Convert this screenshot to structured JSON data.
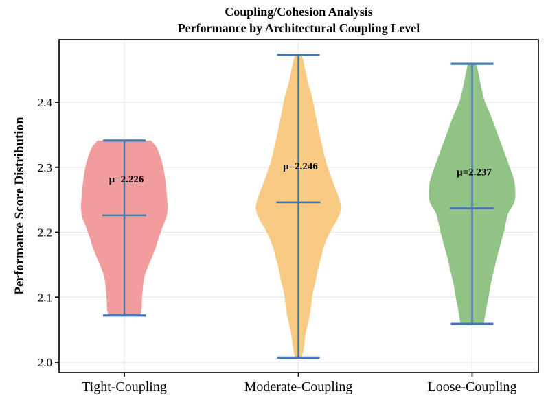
{
  "figure": {
    "title_line1": "Coupling/Cohesion Analysis",
    "title_line2": "Performance by Architectural Coupling Level",
    "ylabel": "Performance Score Distribution"
  },
  "chart_data": {
    "type": "violin",
    "title": "Coupling/Cohesion Analysis",
    "subtitle": "Performance by Architectural Coupling Level",
    "xlabel": "",
    "ylabel": "Performance Score Distribution",
    "categories": [
      "Tight-Coupling",
      "Moderate-Coupling",
      "Loose-Coupling"
    ],
    "y_ticks": [
      2.0,
      2.1,
      2.2,
      2.3,
      2.4
    ],
    "ylim": [
      1.984,
      2.496
    ],
    "grid": true,
    "legend": "none",
    "colors": {
      "stat_line": "#4377B2",
      "grid_line": "#E8E8E8",
      "frame": "#1a1a1a",
      "text": "#000000",
      "background": "#ffffff"
    },
    "series": [
      {
        "name": "Tight-Coupling",
        "mean": 2.226,
        "min": 2.072,
        "max": 2.341,
        "annotation": "μ=2.226",
        "fill": "#F29D9D",
        "profile": [
          [
            2.341,
            0.62
          ],
          [
            2.33,
            0.75
          ],
          [
            2.315,
            0.84
          ],
          [
            2.3,
            0.9
          ],
          [
            2.28,
            0.95
          ],
          [
            2.26,
            0.98
          ],
          [
            2.24,
            1.0
          ],
          [
            2.225,
            0.98
          ],
          [
            2.209,
            0.89
          ],
          [
            2.19,
            0.79
          ],
          [
            2.177,
            0.73
          ],
          [
            2.16,
            0.63
          ],
          [
            2.146,
            0.54
          ],
          [
            2.13,
            0.46
          ],
          [
            2.114,
            0.43
          ],
          [
            2.095,
            0.405
          ],
          [
            2.082,
            0.4
          ],
          [
            2.072,
            0.37
          ]
        ]
      },
      {
        "name": "Moderate-Coupling",
        "mean": 2.246,
        "min": 2.007,
        "max": 2.473,
        "annotation": "μ=2.246",
        "fill": "#F8CA83",
        "profile": [
          [
            2.473,
            0.08
          ],
          [
            2.45,
            0.16
          ],
          [
            2.43,
            0.22
          ],
          [
            2.41,
            0.31
          ],
          [
            2.39,
            0.37
          ],
          [
            2.37,
            0.43
          ],
          [
            2.35,
            0.49
          ],
          [
            2.33,
            0.56
          ],
          [
            2.31,
            0.63
          ],
          [
            2.29,
            0.73
          ],
          [
            2.27,
            0.84
          ],
          [
            2.25,
            0.95
          ],
          [
            2.235,
            0.98
          ],
          [
            2.22,
            0.9
          ],
          [
            2.2,
            0.73
          ],
          [
            2.18,
            0.6
          ],
          [
            2.165,
            0.54
          ],
          [
            2.145,
            0.46
          ],
          [
            2.125,
            0.4
          ],
          [
            2.105,
            0.33
          ],
          [
            2.085,
            0.29
          ],
          [
            2.065,
            0.24
          ],
          [
            2.045,
            0.17
          ],
          [
            2.025,
            0.13
          ],
          [
            2.007,
            0.08
          ]
        ]
      },
      {
        "name": "Loose-Coupling",
        "mean": 2.237,
        "min": 2.059,
        "max": 2.459,
        "annotation": "μ=2.237",
        "fill": "#92C386",
        "profile": [
          [
            2.459,
            0.1
          ],
          [
            2.44,
            0.16
          ],
          [
            2.42,
            0.22
          ],
          [
            2.4,
            0.3
          ],
          [
            2.38,
            0.43
          ],
          [
            2.36,
            0.54
          ],
          [
            2.34,
            0.65
          ],
          [
            2.32,
            0.76
          ],
          [
            2.3,
            0.87
          ],
          [
            2.28,
            0.97
          ],
          [
            2.26,
            1.0
          ],
          [
            2.245,
            0.97
          ],
          [
            2.23,
            0.84
          ],
          [
            2.215,
            0.78
          ],
          [
            2.2,
            0.73
          ],
          [
            2.18,
            0.65
          ],
          [
            2.16,
            0.57
          ],
          [
            2.14,
            0.5
          ],
          [
            2.12,
            0.43
          ],
          [
            2.1,
            0.38
          ],
          [
            2.08,
            0.32
          ],
          [
            2.059,
            0.27
          ]
        ]
      }
    ]
  }
}
